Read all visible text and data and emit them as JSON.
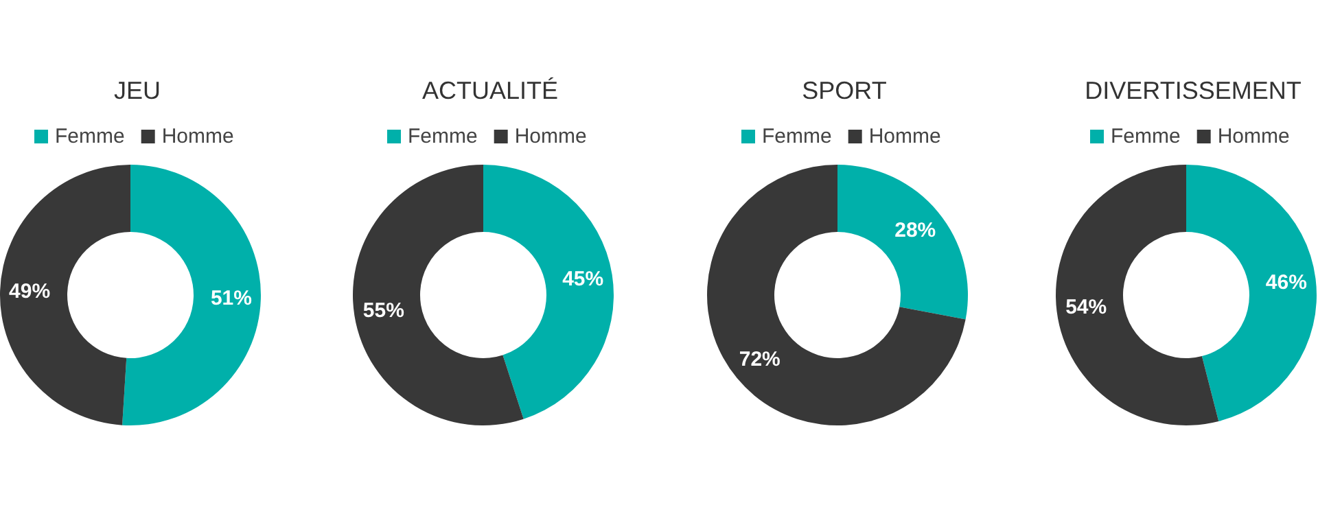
{
  "chart_data": [
    {
      "type": "donut",
      "title": "JEU",
      "categories": [
        "Femme",
        "Homme"
      ],
      "values": [
        51,
        49
      ],
      "colors": [
        "#00b0aa",
        "#383838"
      ],
      "value_labels": [
        "51%",
        "49%"
      ],
      "legend": "top"
    },
    {
      "type": "donut",
      "title": "ACTUALITÉ",
      "categories": [
        "Femme",
        "Homme"
      ],
      "values": [
        45,
        55
      ],
      "colors": [
        "#00b0aa",
        "#383838"
      ],
      "value_labels": [
        "45%",
        "55%"
      ],
      "legend": "top"
    },
    {
      "type": "donut",
      "title": "SPORT",
      "categories": [
        "Femme",
        "Homme"
      ],
      "values": [
        28,
        72
      ],
      "colors": [
        "#00b0aa",
        "#383838"
      ],
      "value_labels": [
        "28%",
        "72%"
      ],
      "legend": "top"
    },
    {
      "type": "donut",
      "title": "DIVERTISSEMENT",
      "categories": [
        "Femme",
        "Homme"
      ],
      "values": [
        46,
        54
      ],
      "colors": [
        "#00b0aa",
        "#383838"
      ],
      "value_labels": [
        "46%",
        "54%"
      ],
      "legend": "top"
    }
  ]
}
